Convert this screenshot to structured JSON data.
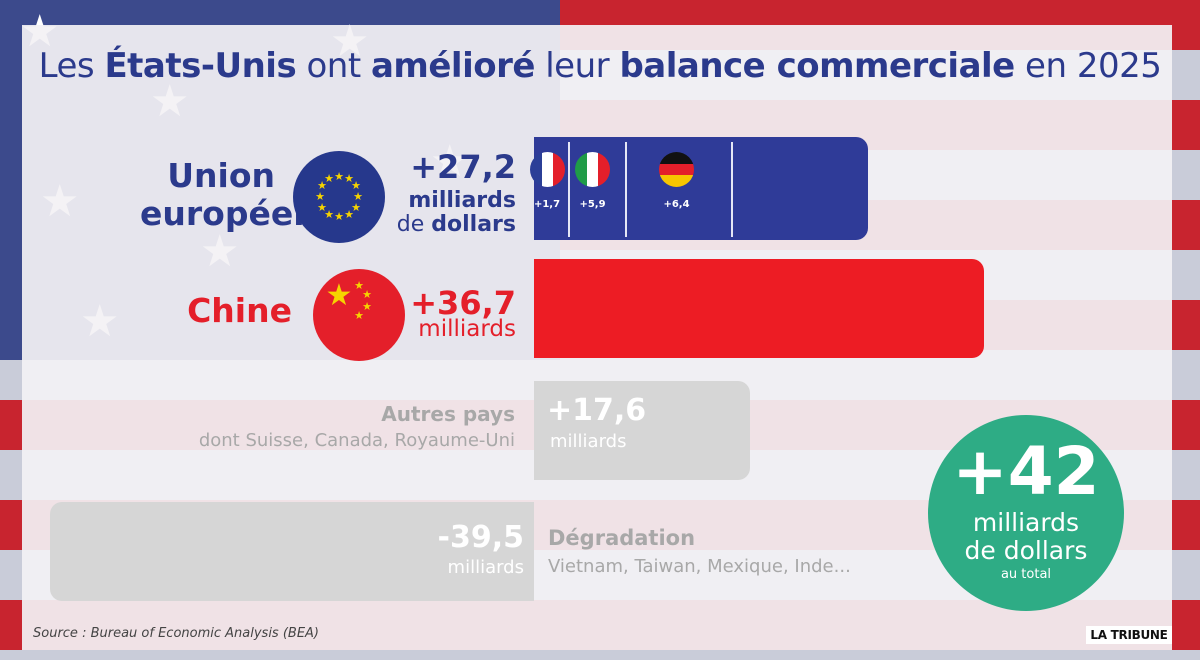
{
  "title": {
    "p1": "Les ",
    "b1": "États-Unis",
    "p2": " ont ",
    "b2": "amélioré",
    "p3": " leur ",
    "b3": "balance commerciale",
    "p4": " en 2025"
  },
  "colors": {
    "eu": "#2f3b98",
    "china": "#ed1c24",
    "other": "#d6d6d6",
    "total": "#2eac85"
  },
  "chart_data": {
    "type": "bar",
    "orientation": "horizontal",
    "unit": "milliards de dollars",
    "categories": [
      "Union européenne",
      "Chine",
      "Autres pays",
      "Dégradation"
    ],
    "values": [
      27.2,
      36.7,
      17.6,
      -39.5
    ],
    "breakdown_eu": [
      {
        "country": "France",
        "value": 1.7
      },
      {
        "country": "Italie",
        "value": 5.9
      },
      {
        "country": "Allemagne",
        "value": 6.4
      }
    ],
    "total": 42
  },
  "labels": {
    "eu_name_1": "Union",
    "eu_name_2": "européenne",
    "eu_value": "+27,2",
    "eu_unit_1": "milliards",
    "eu_unit_2a": "de ",
    "eu_unit_2b": "dollars",
    "fr_value": "+1,7",
    "it_value": "+5,9",
    "de_value": "+6,4",
    "china_name": "Chine",
    "china_value": "+36,7",
    "china_unit": "milliards",
    "other_name": "Autres pays",
    "other_sub": "dont Suisse, Canada, Royaume-Uni",
    "other_value": "+17,6",
    "other_unit": "milliards",
    "degr_value": "-39,5",
    "degr_unit": "milliards",
    "degr_name": "Dégradation",
    "degr_sub": "Vietnam, Taiwan, Mexique, Inde..."
  },
  "total": {
    "value": "+42",
    "unit_1": "milliards",
    "unit_2": "de dollars",
    "unit_3": "au total"
  },
  "footer": {
    "source": "Source : Bureau of Economic Analysis (BEA)",
    "logo": "LA TRIBUNE"
  }
}
